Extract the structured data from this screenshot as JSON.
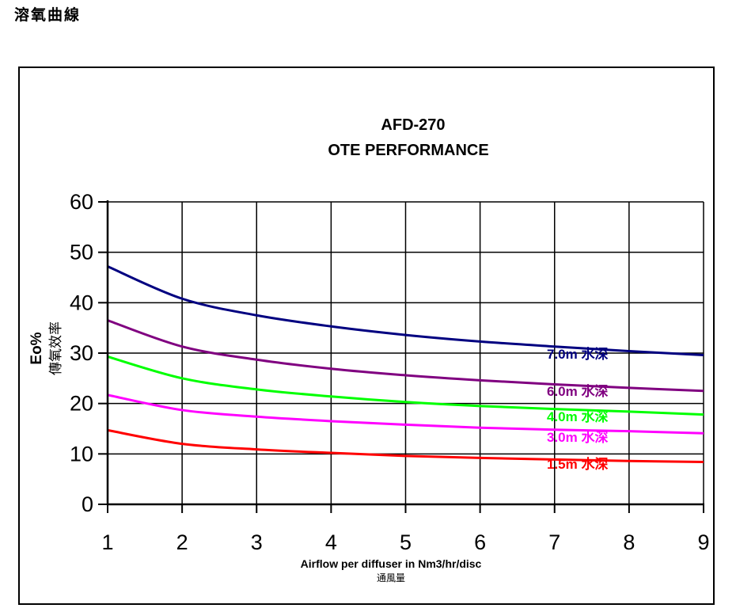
{
  "page": {
    "heading": "溶氧曲線"
  },
  "chart_data": {
    "type": "line",
    "title": [
      "AFD-270",
      "OTE PERFORMANCE"
    ],
    "xlabel": "Airflow per diffuser in Nm3/hr/disc",
    "xlabel_sub": "通風量",
    "ylabel": "Eo%",
    "ylabel_sub": "傳氧效率",
    "xlim": [
      1,
      9
    ],
    "ylim": [
      0,
      60
    ],
    "xticks": [
      "1",
      "2",
      "3",
      "4",
      "5",
      "6",
      "7",
      "8",
      "9"
    ],
    "yticks": [
      "0",
      "10",
      "20",
      "30",
      "40",
      "50",
      "60"
    ],
    "grid": true,
    "x": [
      1,
      2,
      3,
      4,
      5,
      6,
      7,
      8,
      9
    ],
    "series": [
      {
        "name": "7.0m 水深",
        "color": "#000080",
        "values": [
          47.2,
          40.8,
          37.5,
          35.3,
          33.6,
          32.3,
          31.3,
          30.4,
          29.6
        ]
      },
      {
        "name": "6.0m 水深",
        "color": "#800080",
        "values": [
          36.5,
          31.3,
          28.7,
          26.9,
          25.6,
          24.6,
          23.8,
          23.1,
          22.5
        ]
      },
      {
        "name": "4.0m 水深",
        "color": "#00ff00",
        "values": [
          29.3,
          25.0,
          22.8,
          21.4,
          20.3,
          19.5,
          18.9,
          18.4,
          17.8
        ]
      },
      {
        "name": "3.0m 水深",
        "color": "#ff00ff",
        "values": [
          21.7,
          18.7,
          17.4,
          16.5,
          15.8,
          15.2,
          14.8,
          14.5,
          14.1
        ]
      },
      {
        "name": "1.5m 水深",
        "color": "#ff0000",
        "values": [
          14.7,
          12.0,
          10.9,
          10.2,
          9.6,
          9.2,
          8.9,
          8.6,
          8.4
        ]
      }
    ]
  }
}
